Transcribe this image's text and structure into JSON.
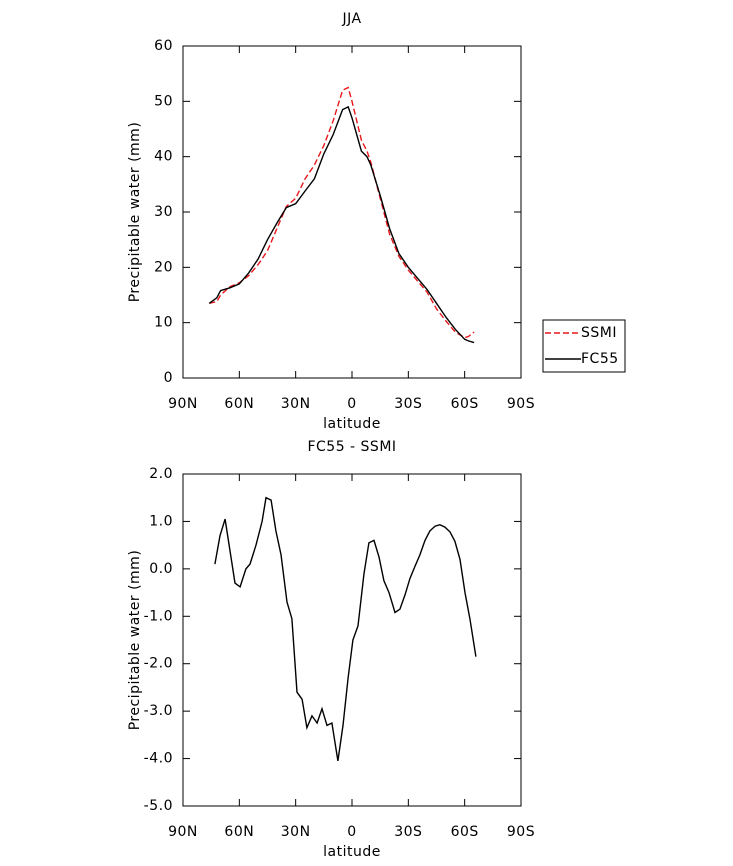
{
  "chart_data": [
    {
      "type": "line",
      "title": "JJA",
      "ylabel": "Precipitable water (mm)",
      "xlabel": "latitude",
      "x": [
        76,
        72,
        70,
        65,
        60,
        55,
        50,
        45,
        40,
        35,
        30,
        25,
        20,
        15,
        10,
        5,
        2,
        0,
        -5,
        -8,
        -10,
        -15,
        -20,
        -25,
        -30,
        -35,
        -40,
        -45,
        -50,
        -55,
        -60,
        -62,
        -65
      ],
      "series": [
        {
          "name": "SSMI",
          "color": "#e8171b",
          "dash": "dashed",
          "values": [
            13.5,
            13.8,
            15,
            16.5,
            17.2,
            18.5,
            20.5,
            23,
            27,
            31,
            32.5,
            36,
            38.5,
            42,
            46.5,
            52,
            52.5,
            50,
            43,
            41,
            39,
            32.5,
            26,
            22,
            19.5,
            17.5,
            15.5,
            12.5,
            10.3,
            8.3,
            7.3,
            7.5,
            8.3
          ]
        },
        {
          "name": "FC55",
          "color": "#000000",
          "dash": "solid",
          "values": [
            13.5,
            14.5,
            15.8,
            16.3,
            17,
            19,
            21.5,
            25,
            28,
            30.8,
            31.5,
            33.8,
            36,
            40.5,
            44,
            48.5,
            49,
            47,
            41,
            40,
            38.5,
            33,
            27,
            22.5,
            20,
            18,
            16,
            13.5,
            11,
            8.8,
            7,
            6.7,
            6.4
          ]
        }
      ],
      "xlim": [
        90,
        -90
      ],
      "xticks": [
        {
          "value": 90,
          "label": "90N"
        },
        {
          "value": 60,
          "label": "60N"
        },
        {
          "value": 30,
          "label": "30N"
        },
        0,
        {
          "value": -30,
          "label": "30S"
        },
        {
          "value": -60,
          "label": "60S"
        },
        {
          "value": -90,
          "label": "90S"
        }
      ],
      "ylim": [
        0,
        60
      ],
      "yticks": [
        0,
        10,
        20,
        30,
        40,
        50,
        60
      ],
      "legend": "outside-right"
    },
    {
      "type": "line",
      "title": "FC55 - SSMI",
      "ylabel": "Precipitable water (mm)",
      "xlabel": "latitude",
      "x": [
        73.0,
        70.3,
        67.6,
        62.3,
        59.6,
        56.5,
        54.3,
        51.1,
        47.9,
        45.8,
        43.1,
        40.5,
        37.8,
        34.6,
        32.0,
        29.3,
        26.6,
        24.0,
        21.3,
        18.6,
        16.0,
        13.3,
        10.7,
        7.5,
        4.8,
        2.1,
        -0.5,
        -3.2,
        -6.4,
        -9.0,
        -11.7,
        -14.4,
        -17.0,
        -19.7,
        -22.9,
        -25.5,
        -28.2,
        -30.9,
        -33.5,
        -36.2,
        -38.9,
        -41.5,
        -44.2,
        -46.8,
        -49.5,
        -52.2,
        -54.8,
        -57.5,
        -60.2,
        -62.8,
        -66.0
      ],
      "values": [
        0.1,
        0.7,
        1.05,
        -0.3,
        -0.38,
        0,
        0.1,
        0.5,
        1.0,
        1.5,
        1.45,
        0.8,
        0.3,
        -0.7,
        -1.05,
        -2.6,
        -2.75,
        -3.35,
        -3.1,
        -3.25,
        -2.95,
        -3.3,
        -3.25,
        -4.05,
        -3.3,
        -2.3,
        -1.5,
        -1.2,
        -0.1,
        0.55,
        0.6,
        0.25,
        -0.25,
        -0.5,
        -0.92,
        -0.85,
        -0.55,
        -0.2,
        0.05,
        0.3,
        0.6,
        0.8,
        0.9,
        0.93,
        0.88,
        0.78,
        0.58,
        0.2,
        -0.5,
        -1.05,
        -1.85
      ],
      "color": "#000000",
      "xlim": [
        90,
        -90
      ],
      "xticks": [
        {
          "value": 90,
          "label": "90N"
        },
        {
          "value": 60,
          "label": "60N"
        },
        {
          "value": 30,
          "label": "30N"
        },
        0,
        {
          "value": -30,
          "label": "30S"
        },
        {
          "value": -60,
          "label": "60S"
        },
        {
          "value": -90,
          "label": "90S"
        }
      ],
      "ylim": [
        -5,
        2
      ],
      "yticks": [
        {
          "value": 2,
          "label": "2.0"
        },
        {
          "value": 1,
          "label": "1.0"
        },
        {
          "value": 0,
          "label": "0.0"
        },
        {
          "value": -1,
          "label": "-1.0"
        },
        {
          "value": -2,
          "label": "-2.0"
        },
        {
          "value": -3,
          "label": "-3.0"
        },
        {
          "value": -4,
          "label": "-4.0"
        },
        {
          "value": -5,
          "label": "-5.0"
        }
      ]
    }
  ]
}
